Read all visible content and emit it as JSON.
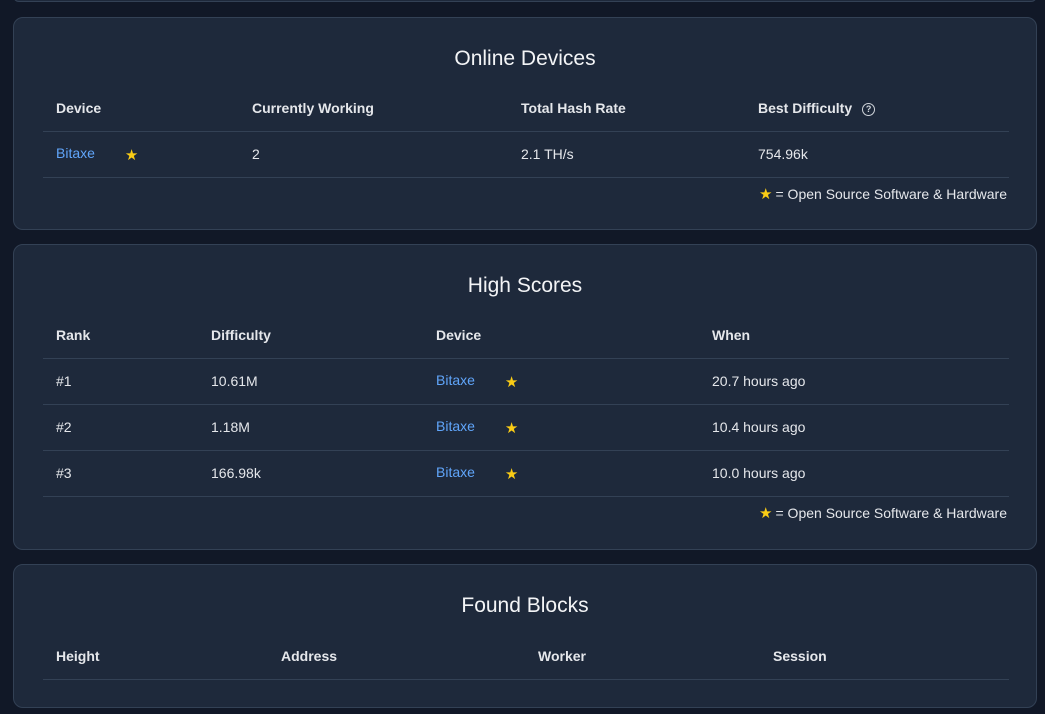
{
  "online_devices": {
    "title": "Online Devices",
    "headers": {
      "device": "Device",
      "working": "Currently Working",
      "hashrate": "Total Hash Rate",
      "best": "Best Difficulty"
    },
    "rows": [
      {
        "device": "Bitaxe",
        "working": "2",
        "hashrate": "2.1 TH/s",
        "best": "754.96k"
      }
    ],
    "legend": "= Open Source Software & Hardware"
  },
  "high_scores": {
    "title": "High Scores",
    "headers": {
      "rank": "Rank",
      "difficulty": "Difficulty",
      "device": "Device",
      "when": "When"
    },
    "rows": [
      {
        "rank": "#1",
        "difficulty": "10.61M",
        "device": "Bitaxe",
        "when": "20.7 hours ago"
      },
      {
        "rank": "#2",
        "difficulty": "1.18M",
        "device": "Bitaxe",
        "when": "10.4 hours ago"
      },
      {
        "rank": "#3",
        "difficulty": "166.98k",
        "device": "Bitaxe",
        "when": "10.0 hours ago"
      }
    ],
    "legend": "= Open Source Software & Hardware"
  },
  "found_blocks": {
    "title": "Found Blocks",
    "headers": {
      "height": "Height",
      "address": "Address",
      "worker": "Worker",
      "session": "Session"
    }
  },
  "icons": {
    "star": "star-icon",
    "help": "question-circle-icon"
  },
  "colors": {
    "background": "#111827",
    "card": "#1e293b",
    "link": "#60a5fa",
    "star": "#facc15"
  }
}
